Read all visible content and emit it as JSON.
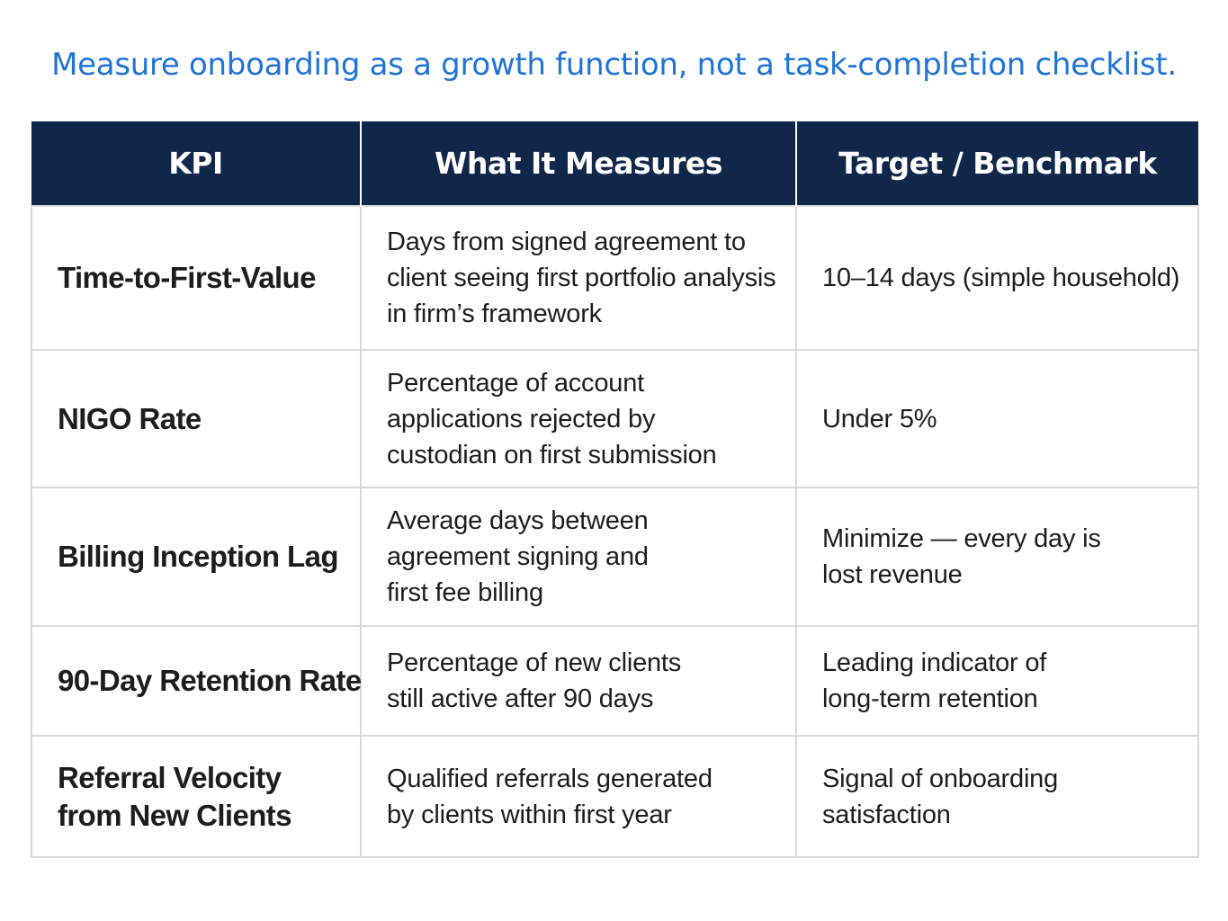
{
  "headline": "Measure onboarding as a growth function, not a task-completion checklist.",
  "colors": {
    "headline": "#1f73d9",
    "header_bg": "#10274a",
    "header_text": "#ffffff",
    "grid": "#d8d8d8"
  },
  "table": {
    "columns": [
      "KPI",
      "What It Measures",
      "Target / Benchmark"
    ],
    "rows": [
      {
        "kpi": [
          "Time-to-First-Value"
        ],
        "measures": [
          "Days from signed agreement to",
          "client seeing first portfolio analysis",
          "in firm’s framework"
        ],
        "target": [
          "10–14 days (simple household)"
        ]
      },
      {
        "kpi": [
          "NIGO Rate"
        ],
        "measures": [
          "Percentage of account",
          "applications rejected by",
          "custodian on first submission"
        ],
        "target": [
          "Under 5%"
        ]
      },
      {
        "kpi": [
          "Billing Inception Lag"
        ],
        "measures": [
          "Average days between",
          "agreement signing and",
          "first fee billing"
        ],
        "target": [
          "Minimize — every day is",
          "lost revenue"
        ]
      },
      {
        "kpi": [
          "90-Day Retention Rate"
        ],
        "measures": [
          "Percentage of new clients",
          "still active after 90 days"
        ],
        "target": [
          "Leading indicator of",
          "long-term retention"
        ]
      },
      {
        "kpi": [
          "Referral Velocity",
          "from New Clients"
        ],
        "measures": [
          "Qualified referrals generated",
          "by clients within first year"
        ],
        "target": [
          "Signal of onboarding",
          "satisfaction"
        ]
      }
    ]
  }
}
